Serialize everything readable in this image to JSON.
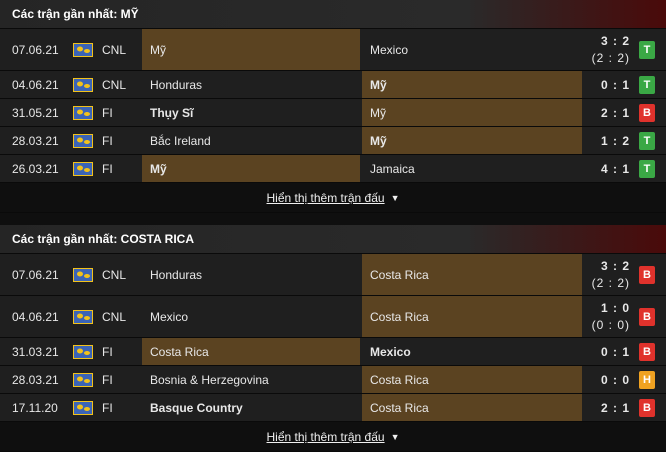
{
  "colors": {
    "win": "#3aa845",
    "loss": "#e0322c",
    "draw": "#f0a221",
    "highlight": "#5b4321"
  },
  "icons": {
    "flag": "world-flag-icon",
    "caret": "caret-down-icon"
  },
  "sections": [
    {
      "title": "Các trận gần nhất: MỸ",
      "more": "Hiển thị thêm trận đấu",
      "rows": [
        {
          "date": "07.06.21",
          "league": "CNL",
          "home": "Mỹ",
          "away": "Mexico",
          "score": "3 : 2",
          "sub": "(2 : 2)",
          "result": "T"
        },
        {
          "date": "04.06.21",
          "league": "CNL",
          "home": "Honduras",
          "away": "Mỹ",
          "score": "0 : 1",
          "sub": "",
          "result": "T"
        },
        {
          "date": "31.05.21",
          "league": "FI",
          "home": "Thụy Sĩ",
          "away": "Mỹ",
          "score": "2 : 1",
          "sub": "",
          "result": "B"
        },
        {
          "date": "28.03.21",
          "league": "FI",
          "home": "Bắc Ireland",
          "away": "Mỹ",
          "score": "1 : 2",
          "sub": "",
          "result": "T"
        },
        {
          "date": "26.03.21",
          "league": "FI",
          "home": "Mỹ",
          "away": "Jamaica",
          "score": "4 : 1",
          "sub": "",
          "result": "T"
        }
      ]
    },
    {
      "title": "Các trận gần nhất: COSTA RICA",
      "more": "Hiển thị thêm trận đấu",
      "rows": [
        {
          "date": "07.06.21",
          "league": "CNL",
          "home": "Honduras",
          "away": "Costa Rica",
          "score": "3 : 2",
          "sub": "(2 : 2)",
          "result": "B"
        },
        {
          "date": "04.06.21",
          "league": "CNL",
          "home": "Mexico",
          "away": "Costa Rica",
          "score": "1 : 0",
          "sub": "(0 : 0)",
          "result": "B"
        },
        {
          "date": "31.03.21",
          "league": "FI",
          "home": "Costa Rica",
          "away": "Mexico",
          "score": "0 : 1",
          "sub": "",
          "result": "B"
        },
        {
          "date": "28.03.21",
          "league": "FI",
          "home": "Bosnia & Herzegovina",
          "away": "Costa Rica",
          "score": "0 : 0",
          "sub": "",
          "result": "H"
        },
        {
          "date": "17.11.20",
          "league": "FI",
          "home": "Basque Country",
          "away": "Costa Rica",
          "score": "2 : 1",
          "sub": "",
          "result": "B"
        }
      ]
    }
  ]
}
